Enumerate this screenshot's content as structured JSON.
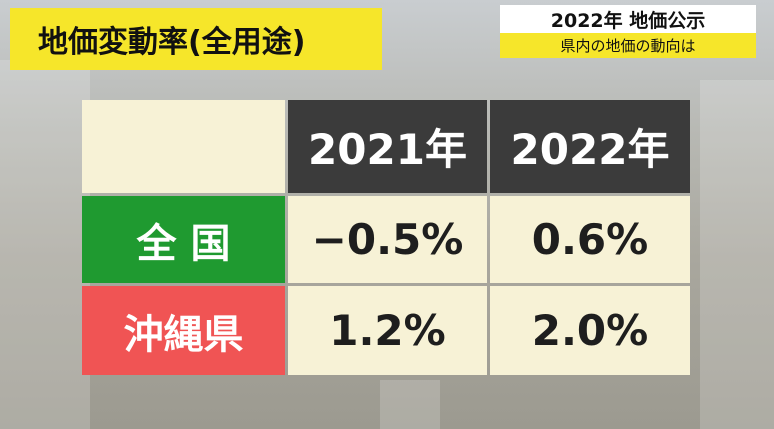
{
  "caption": {
    "title": "地価変動率(全用途)"
  },
  "corner": {
    "title": "2022年 地価公示",
    "subtitle": "県内の地価の動向は"
  },
  "table": {
    "header": [
      "2021年",
      "2022年"
    ],
    "rows": [
      {
        "label": "全 国",
        "cells": [
          "−0.5%",
          "0.6%"
        ]
      },
      {
        "label": "沖縄県",
        "cells": [
          "1.2%",
          "2.0%"
        ]
      }
    ]
  }
}
